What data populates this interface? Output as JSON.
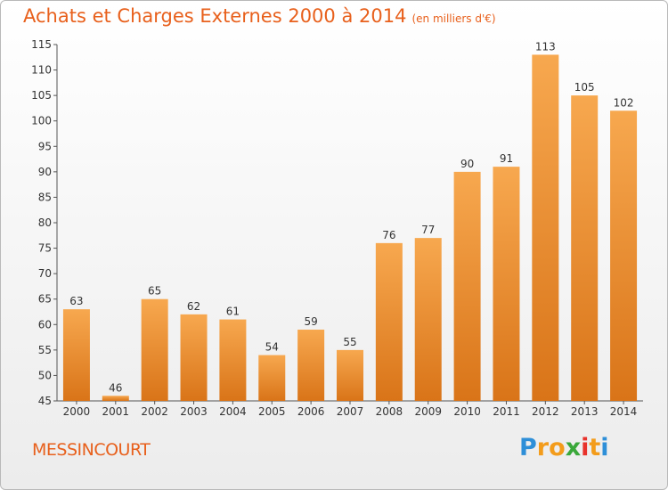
{
  "chart_data": {
    "type": "bar",
    "title": "Achats et Charges Externes 2000 à 2014",
    "subtitle": "(en milliers d'€)",
    "categories": [
      "2000",
      "2001",
      "2002",
      "2003",
      "2004",
      "2005",
      "2006",
      "2007",
      "2008",
      "2009",
      "2010",
      "2011",
      "2012",
      "2013",
      "2014"
    ],
    "values": [
      63,
      46,
      65,
      62,
      61,
      54,
      59,
      55,
      76,
      77,
      90,
      91,
      113,
      105,
      102
    ],
    "ylim": [
      45,
      115
    ],
    "yticks": [
      45,
      50,
      55,
      60,
      65,
      70,
      75,
      80,
      85,
      90,
      95,
      100,
      105,
      110,
      115
    ],
    "grid": false,
    "legend": "none",
    "bar_color_top": "#f7a84f",
    "bar_color_bottom": "#d97418"
  },
  "place_name": "MESSINCOURT",
  "logo": {
    "letters": [
      "P",
      "r",
      "o",
      "x",
      "i",
      "t",
      "i"
    ],
    "colors": [
      "#2e8fd8",
      "#f39c1b",
      "#f39c1b",
      "#3aa83a",
      "#e8322b",
      "#f39c1b",
      "#2e8fd8"
    ]
  }
}
